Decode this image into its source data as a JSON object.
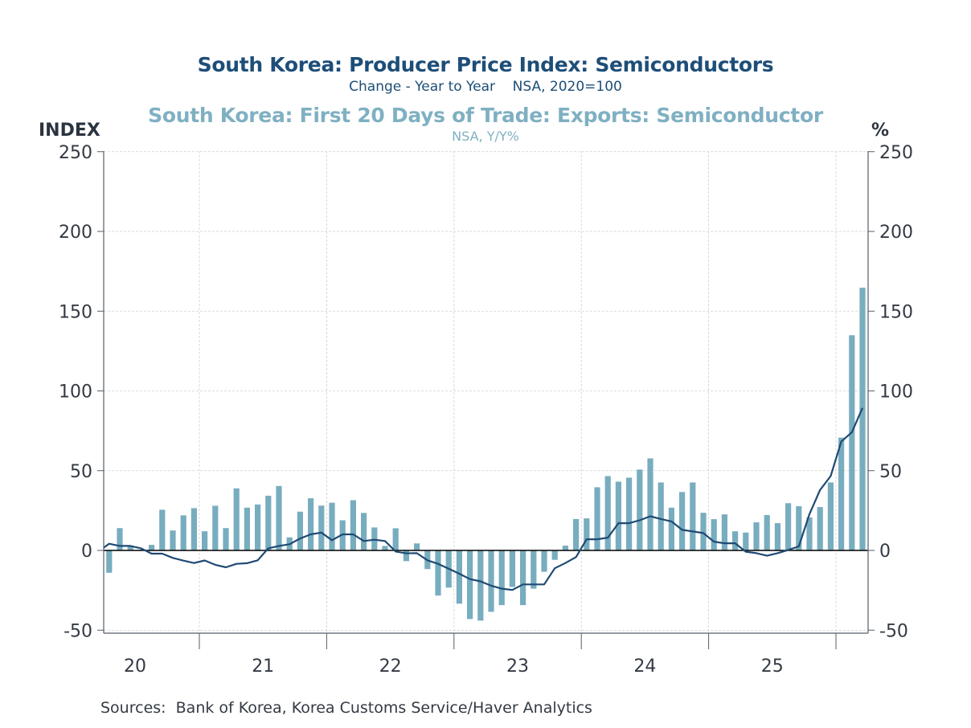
{
  "chart_data": {
    "type": "bar+line",
    "title": "South Korea: Producer Price Index: Semiconductors",
    "title_subtitle": "Change - Year to Year    NSA, 2020=100",
    "title2": "South Korea: First 20 Days of Trade: Exports: Semiconductor",
    "title2_subtitle": "NSA, Y/Y%",
    "ylabel_left": "INDEX",
    "ylabel_right": "%",
    "ylim": [
      -50,
      250
    ],
    "yticks": [
      -50,
      0,
      50,
      100,
      150,
      200,
      250
    ],
    "ytick_labels": [
      "-50",
      "0",
      "50",
      "100",
      "150",
      "200",
      "250"
    ],
    "xtick_labels": [
      "20",
      "21",
      "22",
      "23",
      "24",
      "25"
    ],
    "grid": true,
    "start_month": "2020-04",
    "colors": {
      "line": "#1f4a73",
      "bars": "#78adbf",
      "title1": "#1d4e78",
      "title2": "#7fb0c2"
    },
    "series": [
      {
        "name": "South Korea: First 20 Days of Trade: Exports: Semiconductor (NSA, Y/Y%)",
        "kind": "bar",
        "axis": "right",
        "values": [
          -14,
          14,
          3,
          0.5,
          3.5,
          25.5,
          12.5,
          22,
          26.5,
          12,
          28,
          14,
          38.9,
          26.8,
          28.8,
          34.3,
          40.4,
          8.2,
          24.3,
          32.7,
          28.1,
          29.9,
          18.9,
          31.5,
          23.5,
          14.4,
          2.8,
          13.9,
          -6.7,
          4.4,
          -11.7,
          -28.3,
          -23.3,
          -33.4,
          -43,
          -44,
          -38.5,
          -34.3,
          -22.9,
          -34.3,
          -24,
          -13.4,
          -5.9,
          3,
          19.7,
          20.1,
          39.6,
          46.6,
          43.1,
          45.6,
          50.7,
          57.7,
          42.6,
          26.8,
          36.6,
          42.6,
          23.6,
          19.6,
          22.6,
          12,
          11.2,
          17.6,
          22.2,
          17.1,
          29.6,
          27.7,
          20.7,
          27.2,
          42.6,
          70.7,
          134.9,
          164.7
        ]
      },
      {
        "name": "South Korea: Producer Price Index: Semiconductors (Change - Year to Year, NSA, 2020=100)",
        "kind": "line",
        "axis": "left",
        "values": [
          4.2,
          2.8,
          2.8,
          1.3,
          -2,
          -2,
          -4.7,
          -6.4,
          -7.9,
          -6.3,
          -9,
          -10.6,
          -8.4,
          -8,
          -6.2,
          1.3,
          2.8,
          3.9,
          7.5,
          10.1,
          11.2,
          6.4,
          10.1,
          10.1,
          5.9,
          6.7,
          5.9,
          -0.7,
          -1.8,
          -1.7,
          -6.2,
          -8.4,
          -11.5,
          -14.6,
          -18,
          -19.4,
          -22.1,
          -24,
          -24.8,
          -21.3,
          -21.3,
          -21.3,
          -11.2,
          -7.9,
          -4.2,
          7,
          7,
          8,
          17.1,
          17.1,
          18.9,
          21.4,
          19.7,
          18.2,
          12.9,
          11.9,
          10.9,
          5.5,
          4.5,
          4.5,
          -0.8,
          -1.7,
          -3.3,
          -1.7,
          0.3,
          2.5,
          22.7,
          37.9,
          46.6,
          68.2,
          74.1,
          89.3
        ]
      }
    ]
  },
  "footer": {
    "sources": "Sources:  Bank of Korea, Korea Customs Service/Haver Analytics"
  }
}
